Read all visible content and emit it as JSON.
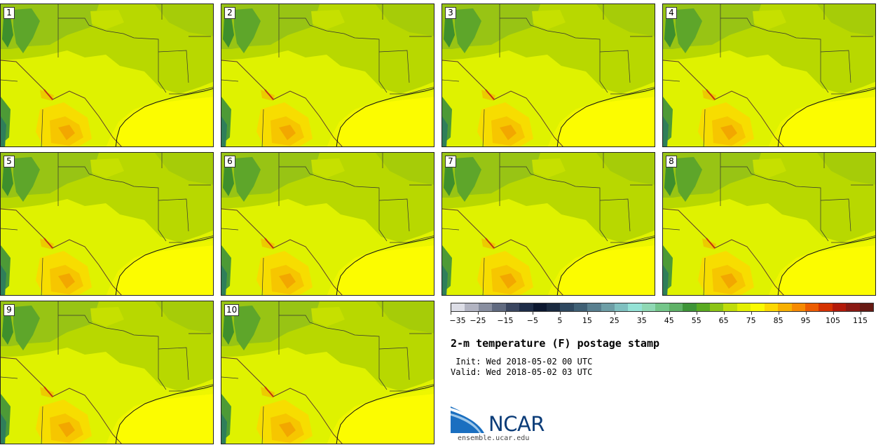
{
  "stamps": [
    {
      "label": "1"
    },
    {
      "label": "2"
    },
    {
      "label": "3"
    },
    {
      "label": "4"
    },
    {
      "label": "5"
    },
    {
      "label": "6"
    },
    {
      "label": "7"
    },
    {
      "label": "8"
    },
    {
      "label": "9"
    },
    {
      "label": "10"
    }
  ],
  "colorbar": {
    "colors": [
      "#dcdde6",
      "#b2b4c2",
      "#888ea0",
      "#606a80",
      "#3a4660",
      "#1e2d48",
      "#0c1830",
      "#1a2a40",
      "#2e4860",
      "#3f6075",
      "#587f8f",
      "#6d9ea6",
      "#7fc0c0",
      "#94e2d6",
      "#8fd8b4",
      "#74c68a",
      "#5fb167",
      "#3e9438",
      "#5aaa22",
      "#8cc416",
      "#bfdc0a",
      "#e3f000",
      "#fafa00",
      "#fcd800",
      "#f7b000",
      "#f68a00",
      "#ec5c00",
      "#d43200",
      "#b21a0a",
      "#8a1a14",
      "#661a14"
    ],
    "tick_labels": [
      "−35",
      "−25",
      "−15",
      "−5",
      "5",
      "15",
      "25",
      "35",
      "45",
      "55",
      "65",
      "75",
      "85",
      "95",
      "105",
      "115"
    ],
    "min": -35,
    "max": 120
  },
  "title": "2-m temperature (F) postage stamp",
  "init_text": " Init: Wed 2018-05-02 00 UTC",
  "valid_text": "Valid: Wed 2018-05-02 03 UTC",
  "logo": {
    "name": "NCAR",
    "url": "ensemble.ucar.edu"
  }
}
